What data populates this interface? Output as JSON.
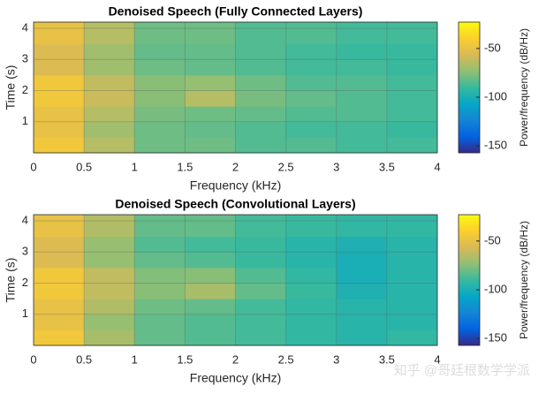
{
  "chart_data": [
    {
      "type": "heatmap",
      "title": "Denoised Speech (Fully Connected Layers)",
      "xlabel": "Frequency (kHz)",
      "ylabel": "Time (s)",
      "colorbar_label": "Power/frequency (dB/Hz)",
      "colormap": "parula",
      "grid": true,
      "xlim": [
        0,
        4
      ],
      "xticks": [
        0,
        0.5,
        1,
        1.5,
        2,
        2.5,
        3,
        3.5,
        4
      ],
      "ylim": [
        0,
        4.2
      ],
      "yticks": [
        1,
        2,
        3,
        4
      ],
      "clim": [
        -157,
        -23
      ],
      "cticks": [
        -150,
        -100,
        -50
      ],
      "xbins": [
        0,
        0.5,
        1,
        1.5,
        2,
        2.5,
        3,
        3.5,
        4
      ],
      "ybins": [
        0,
        0.5,
        1,
        1.5,
        2,
        2.5,
        3,
        3.5,
        4.2
      ],
      "z": [
        [
          -45,
          -65,
          -80,
          -80,
          -85,
          -85,
          -88,
          -88
        ],
        [
          -50,
          -70,
          -80,
          -82,
          -85,
          -88,
          -88,
          -90
        ],
        [
          -50,
          -65,
          -78,
          -80,
          -82,
          -85,
          -85,
          -88
        ],
        [
          -45,
          -60,
          -75,
          -65,
          -78,
          -82,
          -85,
          -88
        ],
        [
          -45,
          -62,
          -75,
          -72,
          -80,
          -85,
          -85,
          -88
        ],
        [
          -55,
          -70,
          -80,
          -82,
          -85,
          -88,
          -88,
          -90
        ],
        [
          -55,
          -70,
          -82,
          -82,
          -85,
          -88,
          -90,
          -90
        ],
        [
          -50,
          -65,
          -80,
          -80,
          -85,
          -85,
          -88,
          -88
        ]
      ]
    },
    {
      "type": "heatmap",
      "title": "Denoised Speech (Convolutional Layers)",
      "xlabel": "Frequency (kHz)",
      "ylabel": "Time (s)",
      "colorbar_label": "Power/frequency (dB/Hz)",
      "colormap": "parula",
      "grid": true,
      "xlim": [
        0,
        4
      ],
      "xticks": [
        0,
        0.5,
        1,
        1.5,
        2,
        2.5,
        3,
        3.5,
        4
      ],
      "ylim": [
        0,
        4.2
      ],
      "yticks": [
        1,
        2,
        3,
        4
      ],
      "clim": [
        -157,
        -23
      ],
      "cticks": [
        -150,
        -100,
        -50
      ],
      "xbins": [
        0,
        0.5,
        1,
        1.5,
        2,
        2.5,
        3,
        3.5,
        4
      ],
      "ybins": [
        0,
        0.5,
        1,
        1.5,
        2,
        2.5,
        3,
        3.5,
        4.2
      ],
      "z": [
        [
          -45,
          -68,
          -82,
          -85,
          -88,
          -92,
          -95,
          -92
        ],
        [
          -50,
          -72,
          -82,
          -85,
          -88,
          -92,
          -95,
          -95
        ],
        [
          -50,
          -66,
          -80,
          -82,
          -88,
          -92,
          -95,
          -95
        ],
        [
          -45,
          -62,
          -75,
          -68,
          -82,
          -90,
          -98,
          -95
        ],
        [
          -45,
          -62,
          -76,
          -75,
          -85,
          -92,
          -100,
          -95
        ],
        [
          -55,
          -72,
          -82,
          -85,
          -90,
          -95,
          -100,
          -95
        ],
        [
          -55,
          -72,
          -85,
          -88,
          -90,
          -95,
          -98,
          -95
        ],
        [
          -50,
          -66,
          -82,
          -82,
          -88,
          -90,
          -92,
          -92
        ]
      ]
    }
  ],
  "watermark": "知乎 @哥廷根数学学派"
}
